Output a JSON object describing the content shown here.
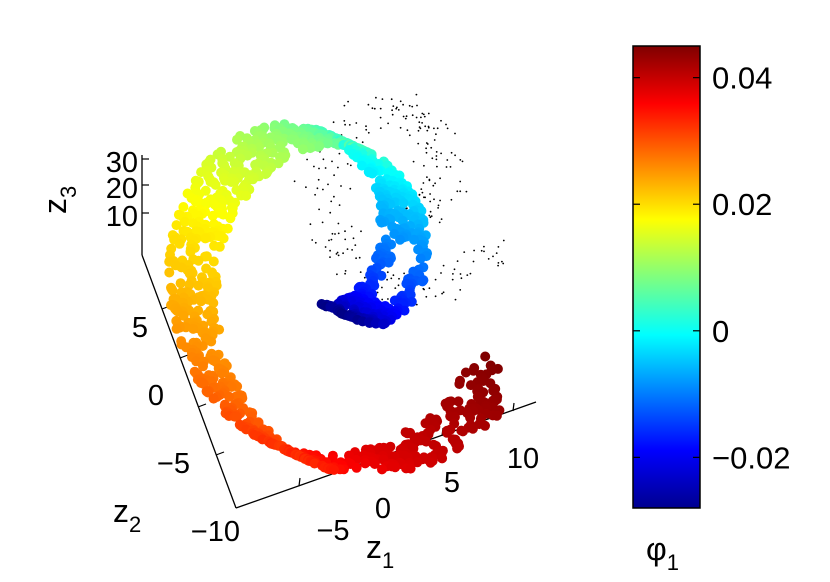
{
  "chart_data": [
    {
      "type": "scatter",
      "projection": "3d",
      "title": "",
      "axes": {
        "x": {
          "label": "z",
          "subscript": "1",
          "ticks": [
            "−5",
            "0",
            "5",
            "10"
          ]
        },
        "y": {
          "label": "z",
          "subscript": "2",
          "ticks": [
            "−10",
            "−5",
            "0",
            "5"
          ]
        },
        "z": {
          "label": "z",
          "subscript": "3",
          "ticks": [
            "10",
            "20",
            "30"
          ]
        }
      },
      "color_variable": {
        "label": "φ",
        "subscript": "1"
      },
      "series": [
        {
          "shape": "swiss-roll with rectangular hole",
          "points_shown": 1200,
          "color_range": [
            -0.028,
            0.045
          ]
        }
      ],
      "grid": false
    },
    {
      "type": "colorbar",
      "colormap": "jet",
      "ylim": [
        -0.028,
        0.045
      ],
      "ticks": [
        {
          "value": 0.04,
          "label": "0.04"
        },
        {
          "value": 0.02,
          "label": "0.02"
        },
        {
          "value": 0,
          "label": "0"
        },
        {
          "value": -0.02,
          "label": "−0.02"
        }
      ]
    }
  ]
}
